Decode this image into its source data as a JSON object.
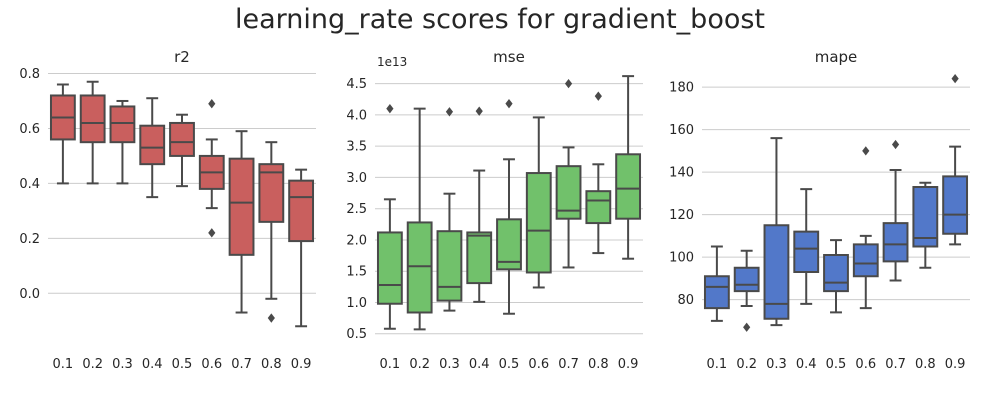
{
  "title": "learning_rate scores for gradient_boost",
  "colors": {
    "r2": "#c95f5e",
    "mse": "#71c16b",
    "mape": "#5278c9",
    "edge": "#4a4a4a",
    "grid": "#cccccc"
  },
  "chart_data": [
    {
      "type": "box",
      "title": "r2",
      "categories": [
        "0.1",
        "0.2",
        "0.3",
        "0.4",
        "0.5",
        "0.6",
        "0.7",
        "0.8",
        "0.9"
      ],
      "ylim": [
        -0.17,
        0.82
      ],
      "yticks": [
        0.0,
        0.2,
        0.4,
        0.6,
        0.8
      ],
      "ytick_labels": [
        "0.0",
        "0.2",
        "0.4",
        "0.6",
        "0.8"
      ],
      "offset_label": "",
      "boxes": [
        {
          "whislo": 0.4,
          "q1": 0.56,
          "med": 0.64,
          "q3": 0.72,
          "whishi": 0.76,
          "fliers": []
        },
        {
          "whislo": 0.4,
          "q1": 0.55,
          "med": 0.62,
          "q3": 0.72,
          "whishi": 0.77,
          "fliers": []
        },
        {
          "whislo": 0.4,
          "q1": 0.55,
          "med": 0.62,
          "q3": 0.68,
          "whishi": 0.7,
          "fliers": []
        },
        {
          "whislo": 0.35,
          "q1": 0.47,
          "med": 0.53,
          "q3": 0.61,
          "whishi": 0.71,
          "fliers": []
        },
        {
          "whislo": 0.39,
          "q1": 0.5,
          "med": 0.55,
          "q3": 0.62,
          "whishi": 0.65,
          "fliers": []
        },
        {
          "whislo": 0.31,
          "q1": 0.38,
          "med": 0.44,
          "q3": 0.5,
          "whishi": 0.56,
          "fliers": [
            0.69,
            0.22
          ]
        },
        {
          "whislo": -0.07,
          "q1": 0.14,
          "med": 0.33,
          "q3": 0.49,
          "whishi": 0.59,
          "fliers": []
        },
        {
          "whislo": -0.02,
          "q1": 0.26,
          "med": 0.44,
          "q3": 0.47,
          "whishi": 0.55,
          "fliers": [
            -0.09
          ]
        },
        {
          "whislo": -0.12,
          "q1": 0.19,
          "med": 0.35,
          "q3": 0.41,
          "whishi": 0.45,
          "fliers": []
        }
      ]
    },
    {
      "type": "box",
      "title": "mse",
      "categories": [
        "0.1",
        "0.2",
        "0.3",
        "0.4",
        "0.5",
        "0.6",
        "0.7",
        "0.8",
        "0.9"
      ],
      "ylim": [
        0.4,
        4.75
      ],
      "yticks": [
        0.5,
        1.0,
        1.5,
        2.0,
        2.5,
        3.0,
        3.5,
        4.0,
        4.5
      ],
      "ytick_labels": [
        "0.5",
        "1.0",
        "1.5",
        "2.0",
        "2.5",
        "3.0",
        "3.5",
        "4.0",
        "4.5"
      ],
      "offset_label": "1e13",
      "boxes": [
        {
          "whislo": 0.58,
          "q1": 0.98,
          "med": 1.28,
          "q3": 2.12,
          "whishi": 2.65,
          "fliers": [
            4.1
          ]
        },
        {
          "whislo": 0.57,
          "q1": 0.84,
          "med": 1.58,
          "q3": 2.28,
          "whishi": 4.1,
          "fliers": []
        },
        {
          "whislo": 0.87,
          "q1": 1.03,
          "med": 1.25,
          "q3": 2.14,
          "whishi": 2.74,
          "fliers": [
            4.05
          ]
        },
        {
          "whislo": 1.01,
          "q1": 1.31,
          "med": 2.07,
          "q3": 2.12,
          "whishi": 3.11,
          "fliers": [
            4.06
          ]
        },
        {
          "whislo": 0.82,
          "q1": 1.53,
          "med": 1.65,
          "q3": 2.33,
          "whishi": 3.29,
          "fliers": [
            4.18
          ]
        },
        {
          "whislo": 1.24,
          "q1": 1.48,
          "med": 2.15,
          "q3": 3.07,
          "whishi": 3.96,
          "fliers": []
        },
        {
          "whislo": 1.56,
          "q1": 2.34,
          "med": 2.47,
          "q3": 3.18,
          "whishi": 3.48,
          "fliers": [
            4.5
          ]
        },
        {
          "whislo": 1.79,
          "q1": 2.27,
          "med": 2.63,
          "q3": 2.78,
          "whishi": 3.21,
          "fliers": [
            4.3
          ]
        },
        {
          "whislo": 1.7,
          "q1": 2.34,
          "med": 2.82,
          "q3": 3.37,
          "whishi": 4.62,
          "fliers": []
        }
      ]
    },
    {
      "type": "box",
      "title": "mape",
      "categories": [
        "0.1",
        "0.2",
        "0.3",
        "0.4",
        "0.5",
        "0.6",
        "0.7",
        "0.8",
        "0.9"
      ],
      "ylim": [
        61,
        189
      ],
      "yticks": [
        80,
        100,
        120,
        140,
        160,
        180
      ],
      "ytick_labels": [
        "80",
        "100",
        "120",
        "140",
        "160",
        "180"
      ],
      "offset_label": "",
      "boxes": [
        {
          "whislo": 70,
          "q1": 76,
          "med": 86,
          "q3": 91,
          "whishi": 105,
          "fliers": []
        },
        {
          "whislo": 77,
          "q1": 84,
          "med": 87,
          "q3": 95,
          "whishi": 103,
          "fliers": [
            67
          ]
        },
        {
          "whislo": 68,
          "q1": 71,
          "med": 78,
          "q3": 115,
          "whishi": 156,
          "fliers": []
        },
        {
          "whislo": 78,
          "q1": 93,
          "med": 104,
          "q3": 112,
          "whishi": 132,
          "fliers": []
        },
        {
          "whislo": 74,
          "q1": 84,
          "med": 88,
          "q3": 101,
          "whishi": 108,
          "fliers": []
        },
        {
          "whislo": 76,
          "q1": 91,
          "med": 97,
          "q3": 106,
          "whishi": 110,
          "fliers": [
            150
          ]
        },
        {
          "whislo": 89,
          "q1": 98,
          "med": 106,
          "q3": 116,
          "whishi": 141,
          "fliers": [
            153
          ]
        },
        {
          "whislo": 95,
          "q1": 105,
          "med": 109,
          "q3": 133,
          "whishi": 135,
          "fliers": []
        },
        {
          "whislo": 106,
          "q1": 111,
          "med": 120,
          "q3": 138,
          "whishi": 152,
          "fliers": [
            184
          ]
        }
      ]
    }
  ]
}
